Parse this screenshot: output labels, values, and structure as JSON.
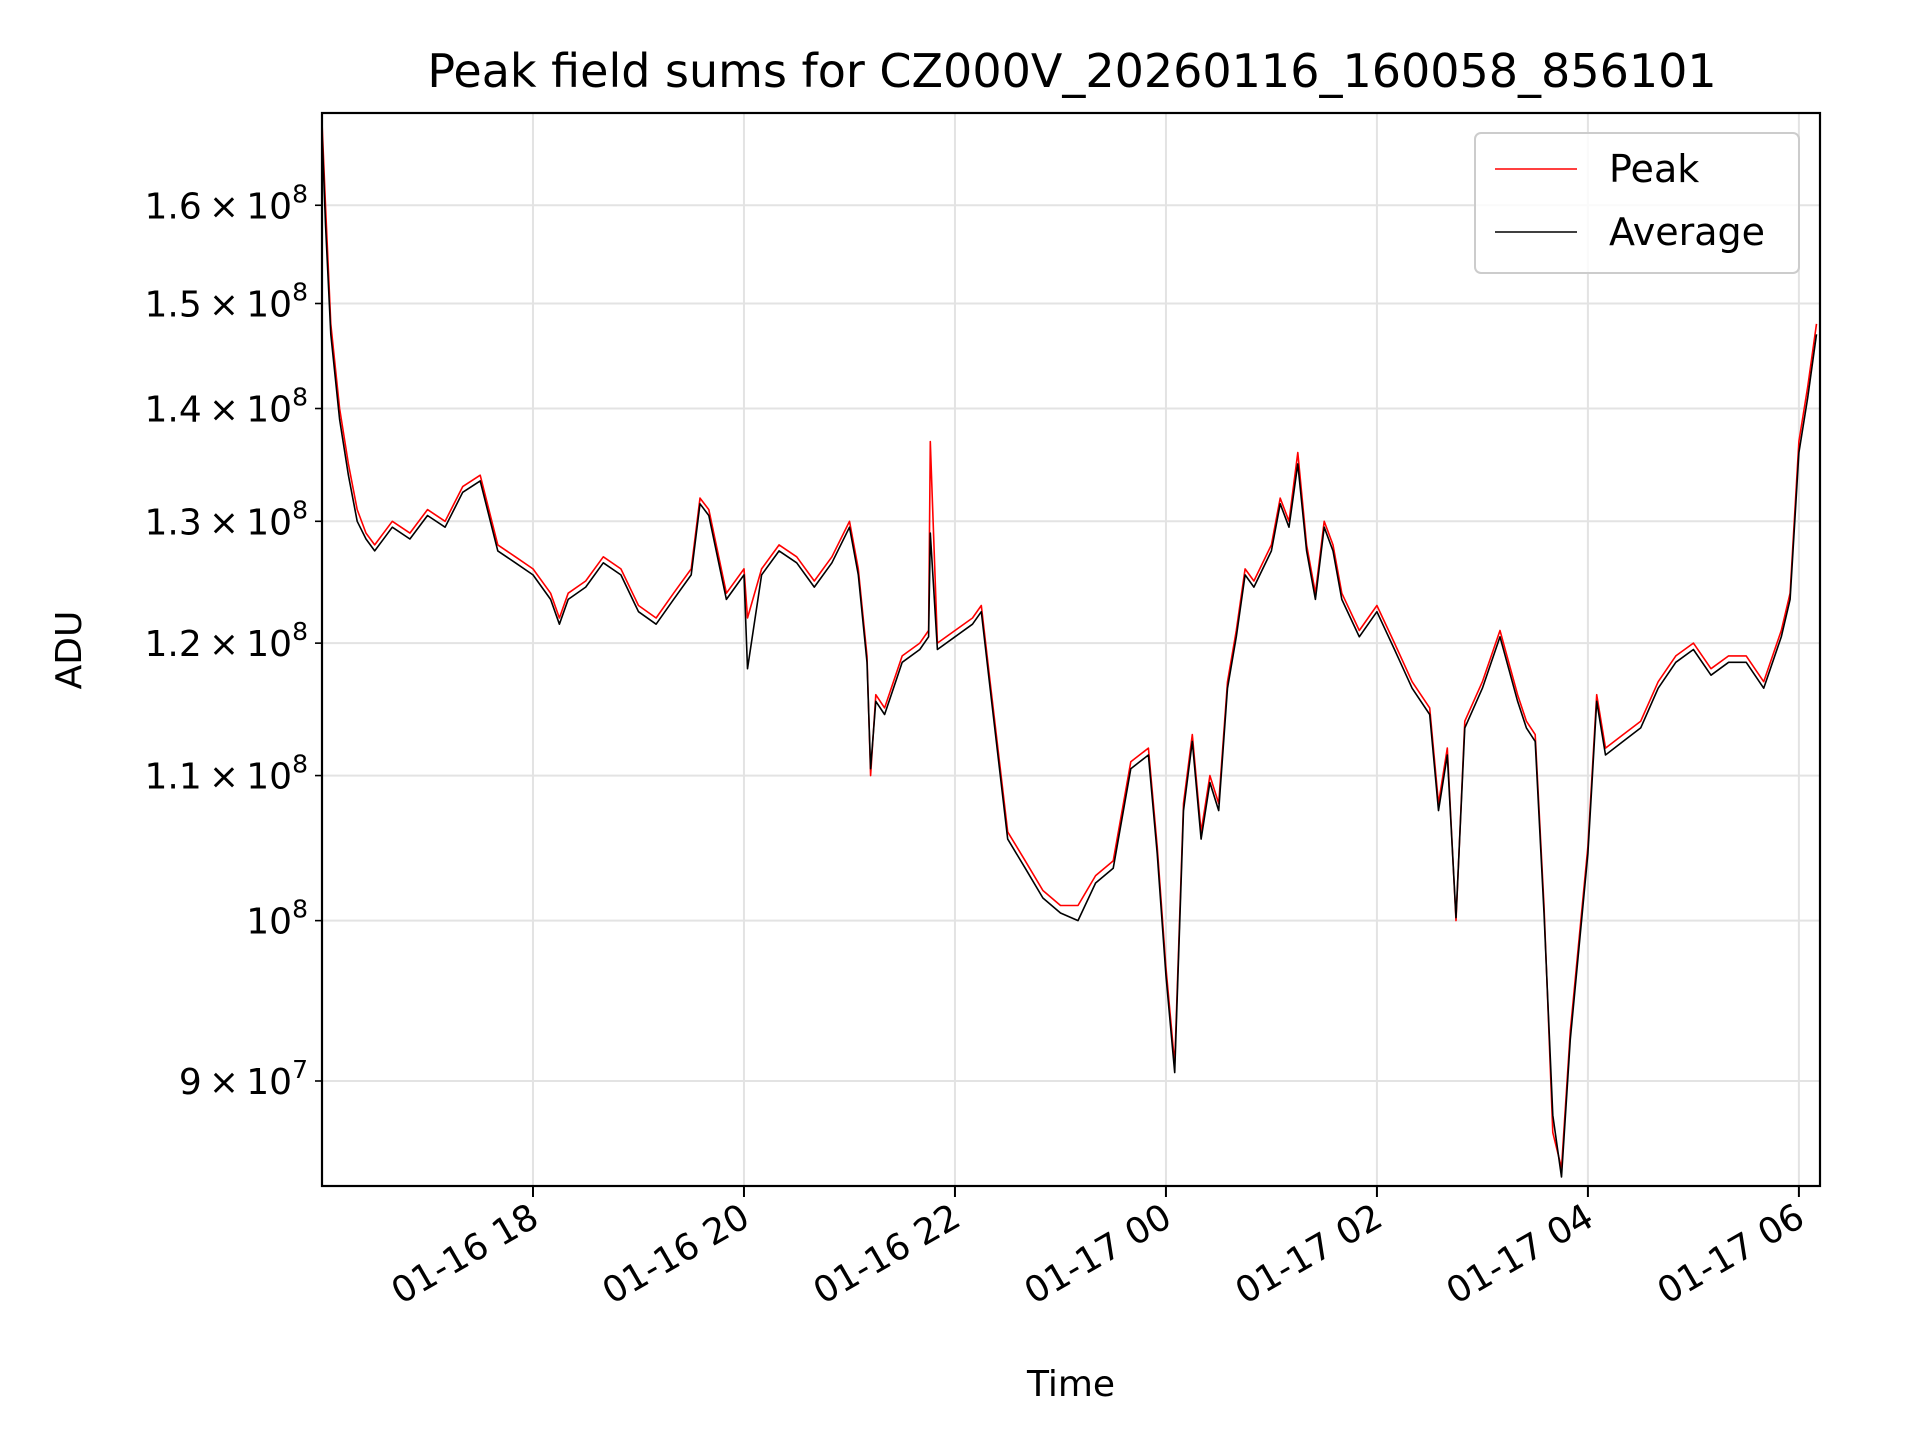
{
  "chart_data": {
    "type": "line",
    "title": "Peak field sums for CZ000V_20260116_160058_856101",
    "xlabel": "Time",
    "ylabel": "ADU",
    "yscale": "log",
    "grid": true,
    "legend_position": "top-right",
    "xlim": [
      "2026-01-16 16:00",
      "2026-01-17 06:12"
    ],
    "ylim": [
      84000000,
      170000000
    ],
    "x_ticks": [
      {
        "value": "2026-01-16 18:00",
        "label": "01-16 18"
      },
      {
        "value": "2026-01-16 20:00",
        "label": "01-16 20"
      },
      {
        "value": "2026-01-16 22:00",
        "label": "01-16 22"
      },
      {
        "value": "2026-01-17 00:00",
        "label": "01-17 00"
      },
      {
        "value": "2026-01-17 02:00",
        "label": "01-17 02"
      },
      {
        "value": "2026-01-17 04:00",
        "label": "01-17 04"
      },
      {
        "value": "2026-01-17 06:00",
        "label": "01-17 06"
      }
    ],
    "y_ticks": [
      {
        "value": 90000000,
        "mant": "9",
        "exp": "7"
      },
      {
        "value": 100000000,
        "mant": "",
        "exp": "8"
      },
      {
        "value": 110000000,
        "mant": "1.1",
        "exp": "8"
      },
      {
        "value": 120000000,
        "mant": "1.2",
        "exp": "8"
      },
      {
        "value": 130000000,
        "mant": "1.3",
        "exp": "8"
      },
      {
        "value": 140000000,
        "mant": "1.4",
        "exp": "8"
      },
      {
        "value": 150000000,
        "mant": "1.5",
        "exp": "8"
      },
      {
        "value": 160000000,
        "mant": "1.6",
        "exp": "8"
      }
    ],
    "x": [
      "2026-01-16 16:00",
      "2026-01-16 16:02",
      "2026-01-16 16:05",
      "2026-01-16 16:10",
      "2026-01-16 16:15",
      "2026-01-16 16:20",
      "2026-01-16 16:25",
      "2026-01-16 16:30",
      "2026-01-16 16:40",
      "2026-01-16 16:50",
      "2026-01-16 17:00",
      "2026-01-16 17:10",
      "2026-01-16 17:20",
      "2026-01-16 17:30",
      "2026-01-16 17:40",
      "2026-01-16 17:50",
      "2026-01-16 18:00",
      "2026-01-16 18:10",
      "2026-01-16 18:15",
      "2026-01-16 18:20",
      "2026-01-16 18:30",
      "2026-01-16 18:40",
      "2026-01-16 18:50",
      "2026-01-16 19:00",
      "2026-01-16 19:10",
      "2026-01-16 19:20",
      "2026-01-16 19:30",
      "2026-01-16 19:35",
      "2026-01-16 19:40",
      "2026-01-16 19:50",
      "2026-01-16 20:00",
      "2026-01-16 20:02",
      "2026-01-16 20:10",
      "2026-01-16 20:20",
      "2026-01-16 20:30",
      "2026-01-16 20:40",
      "2026-01-16 20:50",
      "2026-01-16 21:00",
      "2026-01-16 21:05",
      "2026-01-16 21:10",
      "2026-01-16 21:12",
      "2026-01-16 21:15",
      "2026-01-16 21:20",
      "2026-01-16 21:30",
      "2026-01-16 21:40",
      "2026-01-16 21:45",
      "2026-01-16 21:46",
      "2026-01-16 21:50",
      "2026-01-16 22:00",
      "2026-01-16 22:10",
      "2026-01-16 22:15",
      "2026-01-16 22:20",
      "2026-01-16 22:30",
      "2026-01-16 22:40",
      "2026-01-16 22:50",
      "2026-01-16 23:00",
      "2026-01-16 23:10",
      "2026-01-16 23:20",
      "2026-01-16 23:30",
      "2026-01-16 23:40",
      "2026-01-16 23:50",
      "2026-01-16 23:55",
      "2026-01-17 00:00",
      "2026-01-17 00:05",
      "2026-01-17 00:10",
      "2026-01-17 00:15",
      "2026-01-17 00:20",
      "2026-01-17 00:25",
      "2026-01-17 00:30",
      "2026-01-17 00:35",
      "2026-01-17 00:40",
      "2026-01-17 00:45",
      "2026-01-17 00:50",
      "2026-01-17 01:00",
      "2026-01-17 01:05",
      "2026-01-17 01:10",
      "2026-01-17 01:15",
      "2026-01-17 01:20",
      "2026-01-17 01:25",
      "2026-01-17 01:30",
      "2026-01-17 01:35",
      "2026-01-17 01:40",
      "2026-01-17 01:50",
      "2026-01-17 02:00",
      "2026-01-17 02:10",
      "2026-01-17 02:20",
      "2026-01-17 02:30",
      "2026-01-17 02:35",
      "2026-01-17 02:40",
      "2026-01-17 02:45",
      "2026-01-17 02:50",
      "2026-01-17 03:00",
      "2026-01-17 03:10",
      "2026-01-17 03:20",
      "2026-01-17 03:25",
      "2026-01-17 03:30",
      "2026-01-17 03:35",
      "2026-01-17 03:40",
      "2026-01-17 03:45",
      "2026-01-17 03:50",
      "2026-01-17 04:00",
      "2026-01-17 04:05",
      "2026-01-17 04:10",
      "2026-01-17 04:20",
      "2026-01-17 04:30",
      "2026-01-17 04:40",
      "2026-01-17 04:50",
      "2026-01-17 05:00",
      "2026-01-17 05:10",
      "2026-01-17 05:20",
      "2026-01-17 05:30",
      "2026-01-17 05:40",
      "2026-01-17 05:50",
      "2026-01-17 05:55",
      "2026-01-17 06:00",
      "2026-01-17 06:05",
      "2026-01-17 06:10"
    ],
    "series": [
      {
        "name": "Peak",
        "color": "#ff0000",
        "values": [
          169000000,
          160000000,
          148000000,
          140000000,
          135000000,
          131000000,
          129000000,
          128000000,
          130000000,
          129000000,
          131000000,
          130000000,
          133000000,
          134000000,
          128000000,
          127000000,
          126000000,
          124000000,
          122000000,
          124000000,
          125000000,
          127000000,
          126000000,
          123000000,
          122000000,
          124000000,
          126000000,
          132000000,
          131000000,
          124000000,
          126000000,
          122000000,
          126000000,
          128000000,
          127000000,
          125000000,
          127000000,
          130000000,
          126000000,
          119000000,
          110000000,
          116000000,
          115000000,
          119000000,
          120000000,
          121000000,
          137000000,
          120000000,
          121000000,
          122000000,
          123000000,
          117000000,
          106000000,
          104000000,
          102000000,
          101000000,
          101000000,
          103000000,
          104000000,
          111000000,
          112000000,
          105000000,
          97000000,
          91000000,
          108000000,
          113000000,
          106000000,
          110000000,
          108000000,
          117000000,
          121000000,
          126000000,
          125000000,
          128000000,
          132000000,
          130000000,
          136000000,
          128000000,
          124000000,
          130000000,
          128000000,
          124000000,
          121000000,
          123000000,
          120000000,
          117000000,
          115000000,
          108000000,
          112000000,
          100000000,
          114000000,
          117000000,
          121000000,
          116000000,
          114000000,
          113000000,
          101000000,
          87000000,
          85000000,
          93000000,
          105000000,
          116000000,
          112000000,
          113000000,
          114000000,
          117000000,
          119000000,
          120000000,
          118000000,
          119000000,
          119000000,
          117000000,
          121000000,
          124000000,
          137000000,
          142000000,
          148000000
        ]
      },
      {
        "name": "Average",
        "color": "#000000",
        "values": [
          168000000,
          158000000,
          147000000,
          139000000,
          134000000,
          130000000,
          128500000,
          127500000,
          129500000,
          128500000,
          130500000,
          129500000,
          132500000,
          133500000,
          127500000,
          126500000,
          125500000,
          123500000,
          121500000,
          123500000,
          124500000,
          126500000,
          125500000,
          122500000,
          121500000,
          123500000,
          125500000,
          131500000,
          130500000,
          123500000,
          125500000,
          118000000,
          125500000,
          127500000,
          126500000,
          124500000,
          126500000,
          129500000,
          125500000,
          118500000,
          110500000,
          115500000,
          114500000,
          118500000,
          119500000,
          120500000,
          129000000,
          119500000,
          120500000,
          121500000,
          122500000,
          116500000,
          105500000,
          103500000,
          101500000,
          100500000,
          100000000,
          102500000,
          103500000,
          110500000,
          111500000,
          104500000,
          96500000,
          90500000,
          107500000,
          112500000,
          105500000,
          109500000,
          107500000,
          116500000,
          120500000,
          125500000,
          124500000,
          127500000,
          131500000,
          129500000,
          135000000,
          127500000,
          123500000,
          129500000,
          127500000,
          123500000,
          120500000,
          122500000,
          119500000,
          116500000,
          114500000,
          107500000,
          111500000,
          100200000,
          113500000,
          116500000,
          120500000,
          115500000,
          113500000,
          112500000,
          100500000,
          88000000,
          84500000,
          92500000,
          104500000,
          115500000,
          111500000,
          112500000,
          113500000,
          116500000,
          118500000,
          119500000,
          117500000,
          118500000,
          118500000,
          116500000,
          120500000,
          123500000,
          136000000,
          141000000,
          147000000
        ]
      }
    ]
  }
}
